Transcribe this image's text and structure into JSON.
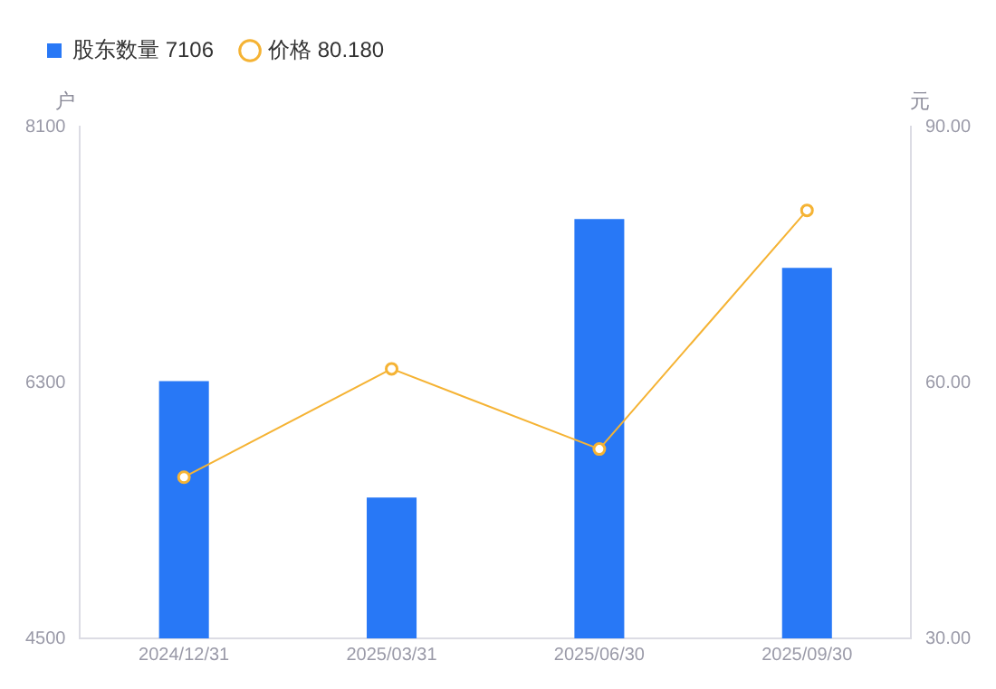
{
  "chart_data": {
    "type": "bar",
    "categories": [
      "2024/12/31",
      "2025/03/31",
      "2025/06/30",
      "2025/09/30"
    ],
    "series": [
      {
        "name": "股东数量 7106",
        "color": "#2878f6",
        "values": [
          6310,
          5490,
          7450,
          7106
        ]
      },
      {
        "name": "价格 80.180",
        "type": "line",
        "axis": "y2",
        "color": "#f5b334",
        "marker": "circle",
        "values": [
          48.9,
          61.6,
          52.2,
          80.18
        ]
      }
    ],
    "ylabel": "户",
    "y2label": "元",
    "ylim": [
      4500,
      8100
    ],
    "yticks": [
      4500,
      6300,
      8100
    ],
    "y2lim": [
      30,
      90
    ],
    "y2ticks": [
      {
        "value": 30,
        "label": "30.00"
      },
      {
        "value": 60,
        "label": "60.00"
      },
      {
        "value": 90,
        "label": "90.00"
      }
    ],
    "grid": false,
    "legend": "top left"
  }
}
